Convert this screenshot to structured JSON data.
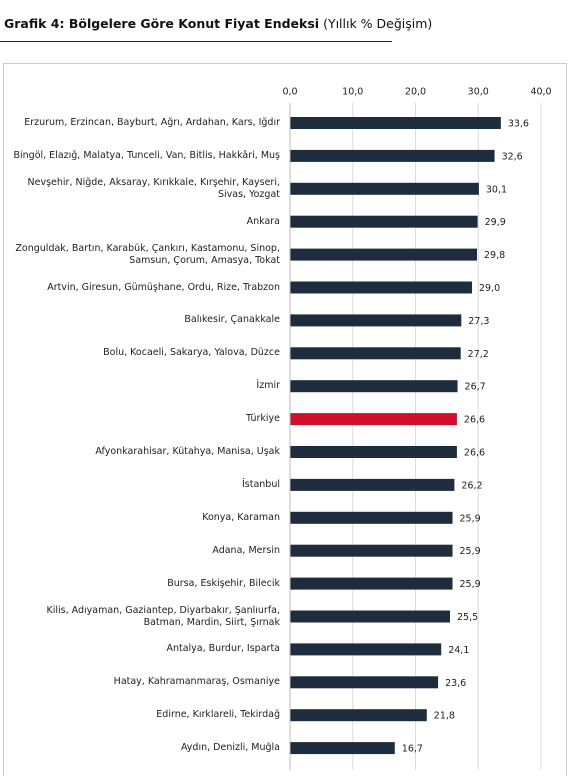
{
  "chart_data": {
    "type": "barh",
    "title": "Grafik 4: Bölgelere Göre Konut Fiyat Endeksi",
    "subtitle": "(Yıllık % Değişim)",
    "categories": [
      "Erzurum, Erzincan, Bayburt, Ağrı, Ardahan, Kars, Iğdır",
      "Bingöl, Elazığ, Malatya, Tunceli, Van, Bitlis, Hakkâri, Muş",
      "Nevşehir, Niğde, Aksaray, Kırıkkale, Kırşehir, Kayseri, Sivas, Yozgat",
      "Ankara",
      "Zonguldak, Bartın, Karabük, Çankırı, Kastamonu, Sinop, Samsun, Çorum, Amasya, Tokat",
      "Artvin, Giresun, Gümüşhane, Ordu, Rize, Trabzon",
      "Balıkesir, Çanakkale",
      "Bolu, Kocaeli, Sakarya, Yalova, Düzce",
      "İzmir",
      "Türkiye",
      "Afyonkarahisar, Kütahya, Manisa, Uşak",
      "İstanbul",
      "Konya, Karaman",
      "Adana, Mersin",
      "Bursa, Eskişehir, Bilecik",
      "Kilis, Adıyaman, Gaziantep, Diyarbakır, Şanlıurfa, Batman, Mardin, Siirt, Şırnak",
      "Antalya, Burdur, Isparta",
      "Hatay, Kahramanmaraş, Osmaniye",
      "Edirne, Kırklareli, Tekirdağ",
      "Aydın, Denizli, Muğla"
    ],
    "values": [
      33.6,
      32.6,
      30.1,
      29.9,
      29.8,
      29.0,
      27.3,
      27.2,
      26.7,
      26.6,
      26.6,
      26.2,
      25.9,
      25.9,
      25.9,
      25.5,
      24.1,
      23.6,
      21.8,
      16.7
    ],
    "value_labels": [
      "33,6",
      "32,6",
      "30,1",
      "29,9",
      "29,8",
      "29,0",
      "27,3",
      "27,2",
      "26,7",
      "26,6",
      "26,6",
      "26,2",
      "25,9",
      "25,9",
      "25,9",
      "25,5",
      "24,1",
      "23,6",
      "21,8",
      "16,7"
    ],
    "colors": [
      "#1e2d3e",
      "#1e2d3e",
      "#1e2d3e",
      "#1e2d3e",
      "#1e2d3e",
      "#1e2d3e",
      "#1e2d3e",
      "#1e2d3e",
      "#1e2d3e",
      "#d0102b",
      "#1e2d3e",
      "#1e2d3e",
      "#1e2d3e",
      "#1e2d3e",
      "#1e2d3e",
      "#1e2d3e",
      "#1e2d3e",
      "#1e2d3e",
      "#1e2d3e",
      "#1e2d3e"
    ],
    "xlim": [
      0,
      40
    ],
    "xticks": [
      {
        "value": 0,
        "label": "0,0"
      },
      {
        "value": 10,
        "label": "10,0"
      },
      {
        "value": 20,
        "label": "20,0"
      },
      {
        "value": 30,
        "label": "30,0"
      },
      {
        "value": 40,
        "label": "40,0"
      }
    ],
    "grid": true
  }
}
